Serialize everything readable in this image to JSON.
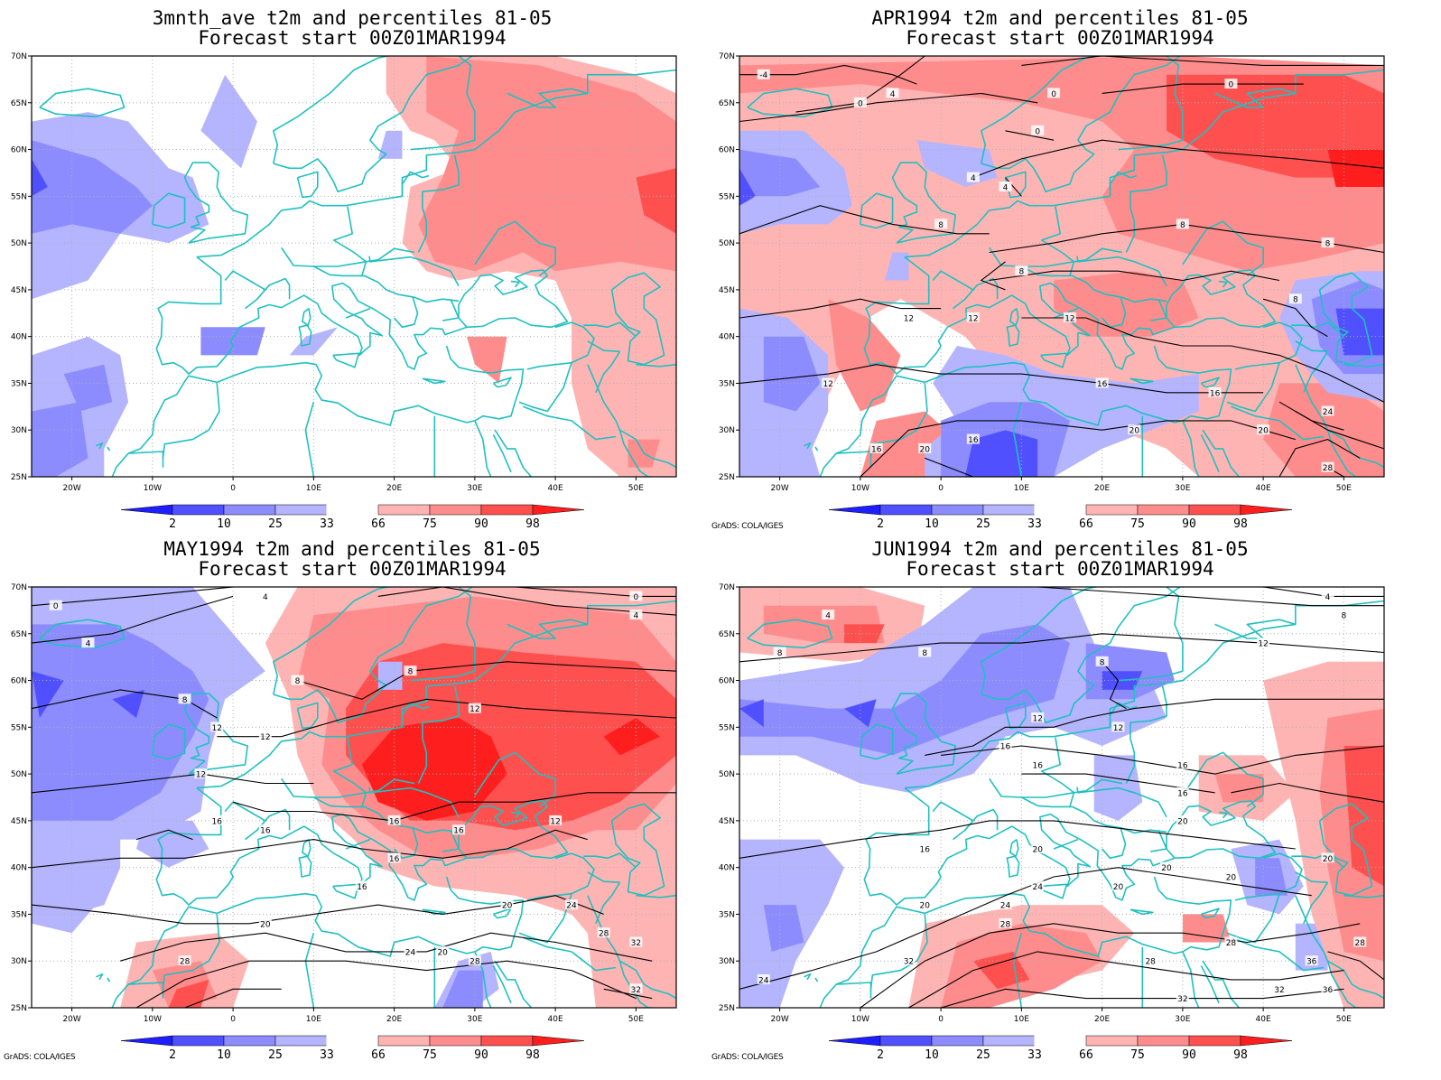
{
  "colors": {
    "b4": "#1e1eff",
    "b3": "#5050ff",
    "b2": "#8c8cff",
    "b1": "#b4b4ff",
    "r1": "#ffb4b4",
    "r2": "#ff8c8c",
    "r3": "#ff5050",
    "r4": "#ff1e1e",
    "coast": "#20c0c0",
    "contour": "#000000"
  },
  "axes": {
    "lat_labels": [
      "70N",
      "65N",
      "60N",
      "55N",
      "50N",
      "45N",
      "40N",
      "35N",
      "30N",
      "25N"
    ],
    "lon_labels": [
      "20W",
      "10W",
      "0",
      "10E",
      "20E",
      "30E",
      "40E",
      "50E"
    ]
  },
  "colorbar": {
    "labels": [
      "2",
      "10",
      "25",
      "33",
      "66",
      "75",
      "90",
      "98"
    ]
  },
  "credit": "GrADS: COLA/IGES",
  "panels": [
    {
      "title1": "3mnth_ave t2m and percentiles 81-05",
      "title2": "Forecast start 00Z01MAR1994",
      "show_credit": false,
      "contours": []
    },
    {
      "title1": "APR1994 t2m and percentiles 81-05",
      "title2": "Forecast start 00Z01MAR1994",
      "show_credit": true,
      "contours": [
        "-4",
        "0",
        "0",
        "0",
        "0",
        "4",
        "4",
        "4",
        "8",
        "8",
        "8",
        "8",
        "8",
        "12",
        "12",
        "12",
        "12",
        "16",
        "16",
        "16",
        "16",
        "20",
        "20",
        "20",
        "24",
        "28"
      ]
    },
    {
      "title1": "MAY1994 t2m and percentiles 81-05",
      "title2": "Forecast start 00Z01MAR1994",
      "show_credit": true,
      "contours": [
        "0",
        "0",
        "4",
        "4",
        "4",
        "8",
        "8",
        "8",
        "12",
        "12",
        "12",
        "12",
        "12",
        "16",
        "16",
        "16",
        "16",
        "16",
        "16",
        "20",
        "20",
        "20",
        "24",
        "24",
        "28",
        "28",
        "28",
        "32",
        "32"
      ]
    },
    {
      "title1": "JUN1994 t2m and percentiles 81-05",
      "title2": "Forecast start 00Z01MAR1994",
      "show_credit": true,
      "contours": [
        "4",
        "4",
        "8",
        "8",
        "8",
        "8",
        "12",
        "12",
        "12",
        "16",
        "16",
        "16",
        "16",
        "16",
        "20",
        "20",
        "20",
        "20",
        "20",
        "20",
        "20",
        "24",
        "24",
        "24",
        "28",
        "28",
        "28",
        "32",
        "32",
        "32",
        "36",
        "36",
        "28"
      ]
    }
  ]
}
